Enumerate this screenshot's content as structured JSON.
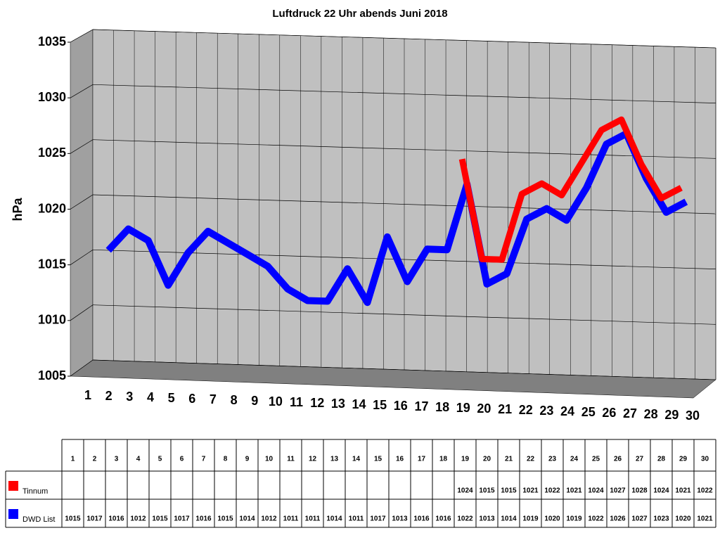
{
  "chart_data": {
    "type": "line",
    "title": "Luftdruck 22 Uhr abends Juni 2018",
    "y_label": "hPa",
    "categories": [
      "1",
      "2",
      "3",
      "4",
      "5",
      "6",
      "7",
      "8",
      "9",
      "10",
      "11",
      "12",
      "13",
      "14",
      "15",
      "16",
      "17",
      "18",
      "19",
      "20",
      "21",
      "22",
      "23",
      "24",
      "25",
      "26",
      "27",
      "28",
      "29",
      "30"
    ],
    "series": [
      {
        "name": "Tinnum",
        "color": "#ff0000",
        "values": [
          null,
          null,
          null,
          null,
          null,
          null,
          null,
          null,
          null,
          null,
          null,
          null,
          null,
          null,
          null,
          null,
          null,
          null,
          1024,
          1015,
          1015,
          1021,
          1022,
          1021,
          1024,
          1027,
          1028,
          1024,
          1021,
          1022
        ]
      },
      {
        "name": "DWD List",
        "color": "#0000ff",
        "values": [
          1015,
          1017,
          1016,
          1012,
          1015,
          1017,
          1016,
          1015,
          1014,
          1012,
          1011,
          1011,
          1014,
          1011,
          1017,
          1013,
          1016,
          1016,
          1022,
          1013,
          1014,
          1019,
          1020,
          1019,
          1022,
          1026,
          1027,
          1023,
          1020,
          1021
        ]
      }
    ],
    "ylim": [
      1005,
      1035
    ],
    "yticks": [
      1005,
      1010,
      1015,
      1020,
      1025,
      1030,
      1035
    ],
    "grid": true
  }
}
